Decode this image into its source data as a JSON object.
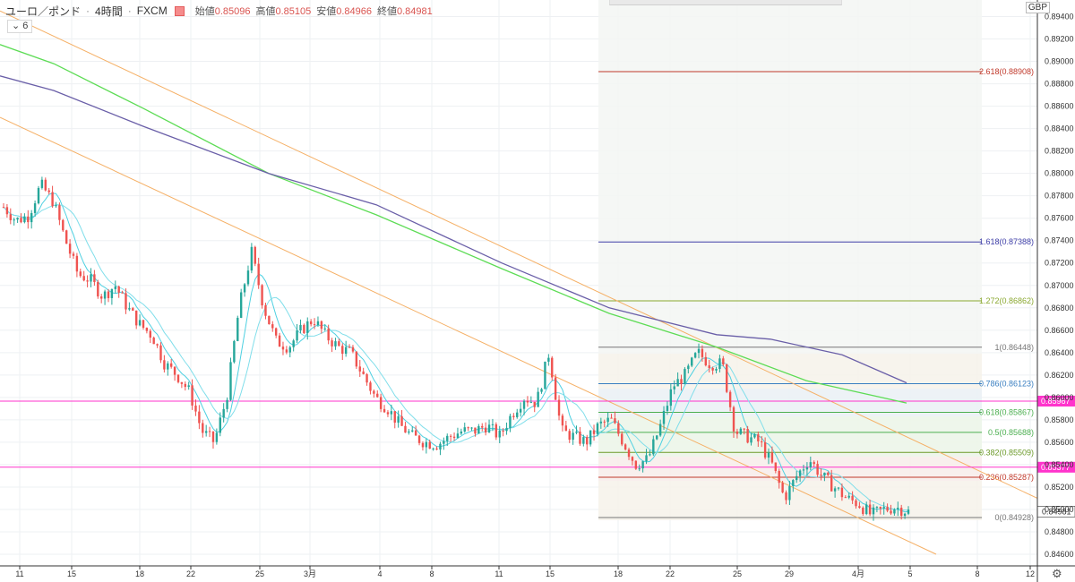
{
  "header": {
    "symbol": "ユーロ／ポンド",
    "interval": "4時間",
    "broker": "FXCM",
    "open_label": "始値",
    "open": "0.85096",
    "high_label": "高値",
    "high": "0.85105",
    "low_label": "安値",
    "low": "0.84966",
    "close_label": "終値",
    "close": "0.84981",
    "indicator_toggle": "⌄ 6"
  },
  "currency": "GBP",
  "settings_icon": "gear-icon",
  "colors": {
    "up": "#26a69a",
    "down": "#ef5350",
    "ma_fast": "#4dd0e1",
    "ma_mid": "#80deea",
    "ma_green": "#5ddc55",
    "ma_purple": "#6a5fa8",
    "channel": "#f5b066",
    "hline": "#ff33cc",
    "last_price_bg": "#ef5350"
  },
  "chart_data": {
    "type": "line",
    "ylim": [
      0.845,
      0.896
    ],
    "y_ticks": [
      "0.89400",
      "0.89200",
      "0.89000",
      "0.88800",
      "0.88600",
      "0.88400",
      "0.88200",
      "0.88000",
      "0.87800",
      "0.87600",
      "0.87400",
      "0.87200",
      "0.87000",
      "0.86800",
      "0.86600",
      "0.86400",
      "0.86200",
      "0.86000",
      "0.85800",
      "0.85600",
      "0.85400",
      "0.85200",
      "0.85000",
      "0.84800",
      "0.84600"
    ],
    "x_ticks": [
      "11",
      "15",
      "18",
      "22",
      "25",
      "3月",
      "4",
      "8",
      "11",
      "15",
      "18",
      "22",
      "25",
      "29",
      "4月",
      "5",
      "8",
      "12"
    ],
    "last_price": "0.84981",
    "horizontal_lines": [
      {
        "label": "0.85967",
        "value": 0.85967
      },
      {
        "label": "0.85377",
        "value": 0.85377
      }
    ],
    "fibonacci": [
      {
        "label": "2.618(0.88908)",
        "value": 0.88908,
        "color": "#c0392b"
      },
      {
        "label": "1.618(0.87388)",
        "value": 0.87388,
        "color": "#3f3fa8"
      },
      {
        "label": "1.272(0.86862)",
        "value": 0.86862,
        "color": "#8aa830"
      },
      {
        "label": "1(0.86448)",
        "value": 0.86448,
        "color": "#777777"
      },
      {
        "label": "0.786(0.86123)",
        "value": 0.86123,
        "color": "#3a7fc1"
      },
      {
        "label": "0.618(0.85867)",
        "value": 0.85867,
        "color": "#4caf50"
      },
      {
        "label": "0.5(0.85688)",
        "value": 0.85688,
        "color": "#4caf50"
      },
      {
        "label": "0.382(0.85509)",
        "value": 0.85509,
        "color": "#6c9a2a"
      },
      {
        "label": "0.236(0.85287)",
        "value": 0.85287,
        "color": "#c0392b"
      },
      {
        "label": "0(0.84928)",
        "value": 0.84928,
        "color": "#777777"
      }
    ],
    "price_path": [
      0.877,
      0.8758,
      0.8762,
      0.879,
      0.8775,
      0.874,
      0.871,
      0.8705,
      0.869,
      0.87,
      0.868,
      0.8665,
      0.8655,
      0.863,
      0.862,
      0.8605,
      0.857,
      0.856,
      0.86,
      0.868,
      0.873,
      0.868,
      0.865,
      0.8645,
      0.866,
      0.867,
      0.8655,
      0.8645,
      0.864,
      0.862,
      0.86,
      0.859,
      0.8575,
      0.8565,
      0.856,
      0.8558,
      0.8565,
      0.857,
      0.857,
      0.8575,
      0.8565,
      0.8585,
      0.86,
      0.8595,
      0.864,
      0.857,
      0.8565,
      0.856,
      0.8575,
      0.858,
      0.856,
      0.854,
      0.8545,
      0.8575,
      0.861,
      0.862,
      0.864,
      0.863,
      0.863,
      0.857,
      0.8565,
      0.856,
      0.854,
      0.851,
      0.853,
      0.8545,
      0.853,
      0.852,
      0.851,
      0.8505,
      0.8495,
      0.85,
      0.8502,
      0.8498
    ]
  }
}
